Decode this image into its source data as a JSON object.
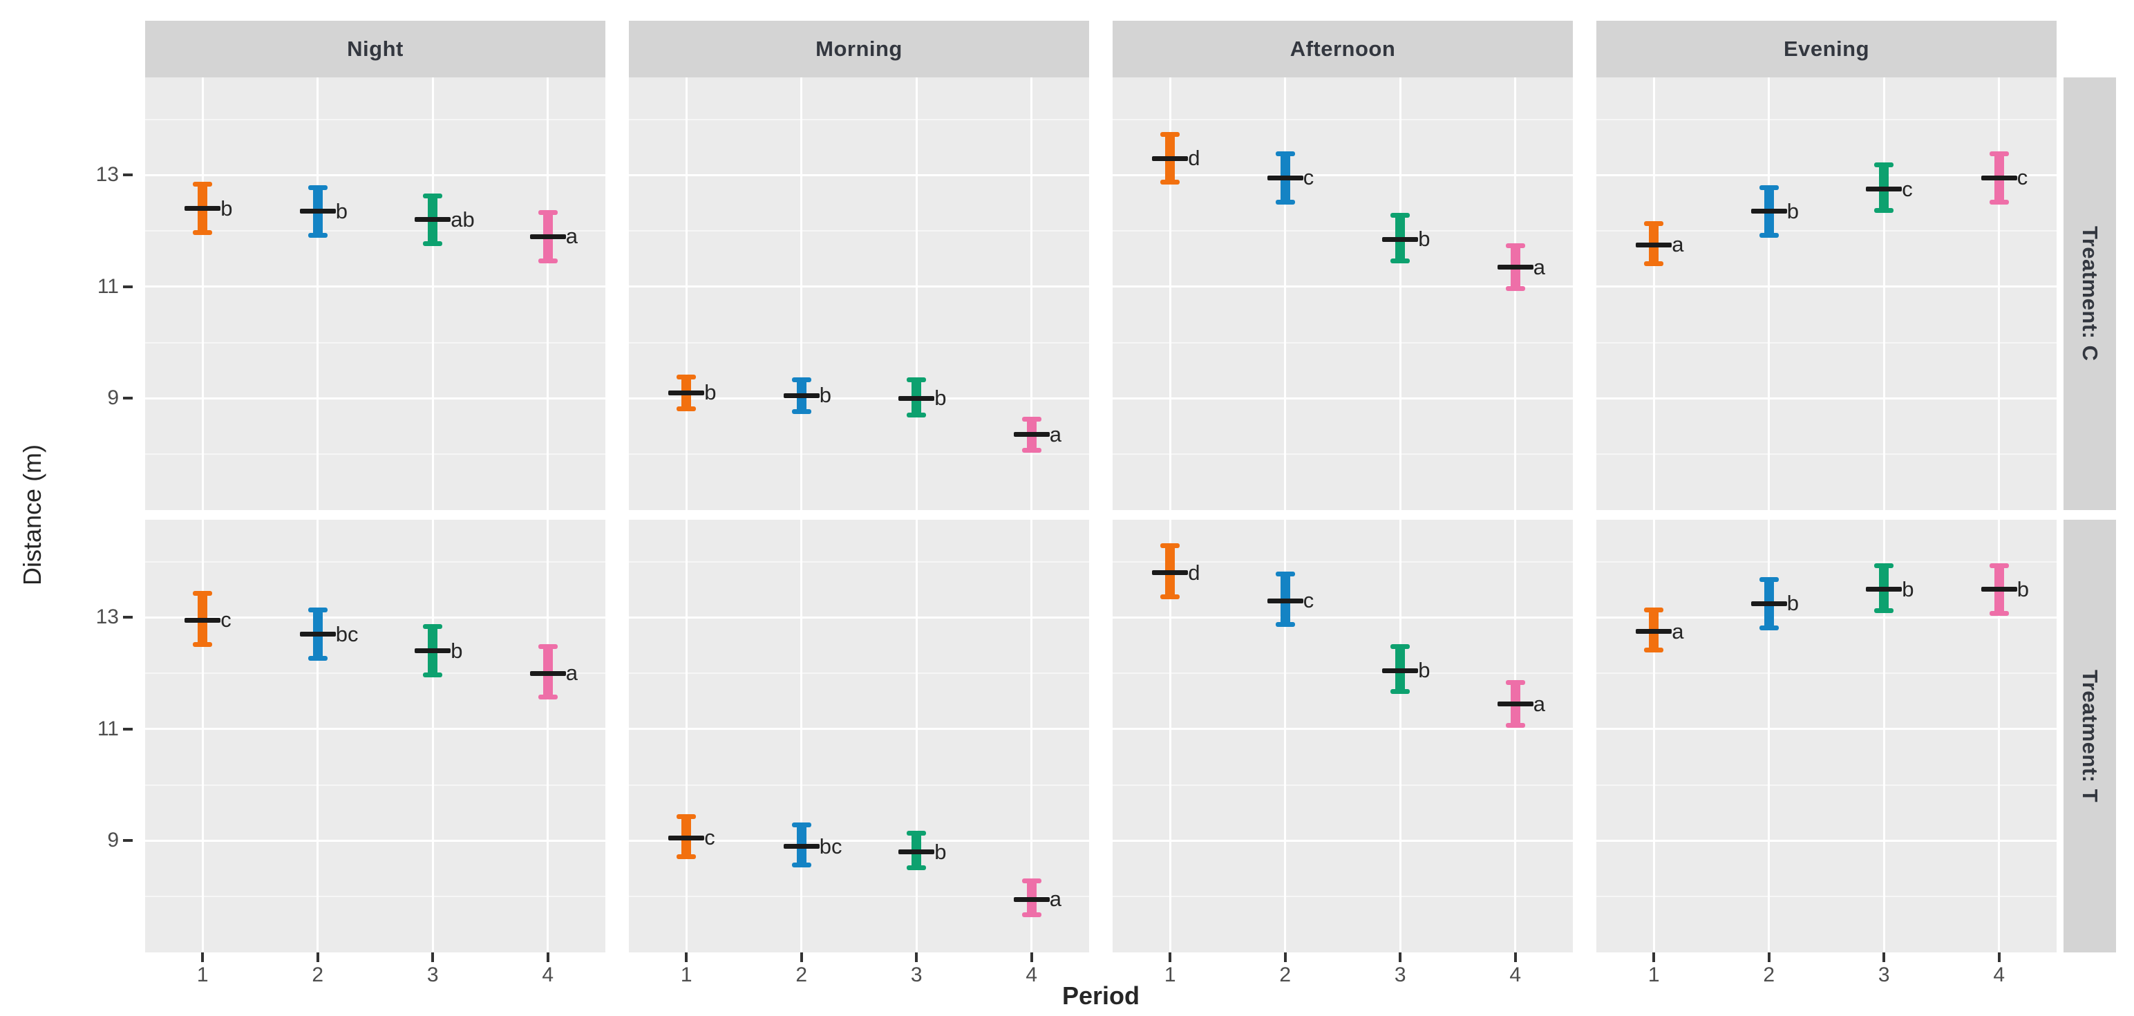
{
  "chart_data": {
    "type": "pointrange",
    "xlabel": "Period",
    "ylabel": "Distance (m)",
    "ylim": [
      7.0,
      14.75
    ],
    "y_major_ticks": [
      13,
      11,
      9
    ],
    "y_minor_gridlines": [
      14,
      12,
      10,
      8
    ],
    "x_categories": [
      "1",
      "2",
      "3",
      "4"
    ],
    "col_facets": [
      "Night",
      "Morning",
      "Afternoon",
      "Evening"
    ],
    "row_facets": [
      "Treatment: C",
      "Treatment: T"
    ],
    "legend_position": "none",
    "grid": "on",
    "panel_bg": "#ebebeb",
    "strip_bg": "#d4d4d4",
    "point_marker_color": "#1a1a1a",
    "period_colors": {
      "1": "#f2700f",
      "2": "#1483c4",
      "3": "#0da16f",
      "4": "#ee6fa8"
    },
    "panels": [
      {
        "row": "Treatment: C",
        "col": "Night",
        "points": [
          {
            "period": "1",
            "mean": 12.4,
            "lower": 11.95,
            "upper": 12.85,
            "sig": "b"
          },
          {
            "period": "2",
            "mean": 12.35,
            "lower": 11.9,
            "upper": 12.8,
            "sig": "b"
          },
          {
            "period": "3",
            "mean": 12.2,
            "lower": 11.75,
            "upper": 12.65,
            "sig": "ab"
          },
          {
            "period": "4",
            "mean": 11.9,
            "lower": 11.45,
            "upper": 12.35,
            "sig": "a"
          }
        ]
      },
      {
        "row": "Treatment: C",
        "col": "Morning",
        "points": [
          {
            "period": "1",
            "mean": 9.1,
            "lower": 8.8,
            "upper": 9.4,
            "sig": "b"
          },
          {
            "period": "2",
            "mean": 9.05,
            "lower": 8.75,
            "upper": 9.35,
            "sig": "b"
          },
          {
            "period": "3",
            "mean": 9.0,
            "lower": 8.68,
            "upper": 9.35,
            "sig": "b"
          },
          {
            "period": "4",
            "mean": 8.35,
            "lower": 8.05,
            "upper": 8.65,
            "sig": "a"
          }
        ]
      },
      {
        "row": "Treatment: C",
        "col": "Afternoon",
        "points": [
          {
            "period": "1",
            "mean": 13.3,
            "lower": 12.85,
            "upper": 13.75,
            "sig": "d"
          },
          {
            "period": "2",
            "mean": 12.95,
            "lower": 12.5,
            "upper": 13.4,
            "sig": "c"
          },
          {
            "period": "3",
            "mean": 11.85,
            "lower": 11.45,
            "upper": 12.3,
            "sig": "b"
          },
          {
            "period": "4",
            "mean": 11.35,
            "lower": 10.95,
            "upper": 11.75,
            "sig": "a"
          }
        ]
      },
      {
        "row": "Treatment: C",
        "col": "Evening",
        "points": [
          {
            "period": "1",
            "mean": 11.75,
            "lower": 11.4,
            "upper": 12.15,
            "sig": "a"
          },
          {
            "period": "2",
            "mean": 12.35,
            "lower": 11.9,
            "upper": 12.8,
            "sig": "b"
          },
          {
            "period": "3",
            "mean": 12.75,
            "lower": 12.35,
            "upper": 13.2,
            "sig": "c"
          },
          {
            "period": "4",
            "mean": 12.95,
            "lower": 12.5,
            "upper": 13.4,
            "sig": "c"
          }
        ]
      },
      {
        "row": "Treatment: T",
        "col": "Night",
        "points": [
          {
            "period": "1",
            "mean": 12.95,
            "lower": 12.5,
            "upper": 13.45,
            "sig": "c"
          },
          {
            "period": "2",
            "mean": 12.7,
            "lower": 12.25,
            "upper": 13.15,
            "sig": "bc"
          },
          {
            "period": "3",
            "mean": 12.4,
            "lower": 11.95,
            "upper": 12.85,
            "sig": "b"
          },
          {
            "period": "4",
            "mean": 12.0,
            "lower": 11.55,
            "upper": 12.5,
            "sig": "a"
          }
        ]
      },
      {
        "row": "Treatment: T",
        "col": "Morning",
        "points": [
          {
            "period": "1",
            "mean": 9.05,
            "lower": 8.7,
            "upper": 9.45,
            "sig": "c"
          },
          {
            "period": "2",
            "mean": 8.9,
            "lower": 8.55,
            "upper": 9.3,
            "sig": "bc"
          },
          {
            "period": "3",
            "mean": 8.8,
            "lower": 8.5,
            "upper": 9.15,
            "sig": "b"
          },
          {
            "period": "4",
            "mean": 7.95,
            "lower": 7.65,
            "upper": 8.3,
            "sig": "a"
          }
        ]
      },
      {
        "row": "Treatment: T",
        "col": "Afternoon",
        "points": [
          {
            "period": "1",
            "mean": 13.8,
            "lower": 13.35,
            "upper": 14.3,
            "sig": "d"
          },
          {
            "period": "2",
            "mean": 13.3,
            "lower": 12.85,
            "upper": 13.8,
            "sig": "c"
          },
          {
            "period": "3",
            "mean": 12.05,
            "lower": 11.65,
            "upper": 12.5,
            "sig": "b"
          },
          {
            "period": "4",
            "mean": 11.45,
            "lower": 11.05,
            "upper": 11.85,
            "sig": "a"
          }
        ]
      },
      {
        "row": "Treatment: T",
        "col": "Evening",
        "points": [
          {
            "period": "1",
            "mean": 12.75,
            "lower": 12.4,
            "upper": 13.15,
            "sig": "a"
          },
          {
            "period": "2",
            "mean": 13.25,
            "lower": 12.8,
            "upper": 13.7,
            "sig": "b"
          },
          {
            "period": "3",
            "mean": 13.5,
            "lower": 13.1,
            "upper": 13.95,
            "sig": "b"
          },
          {
            "period": "4",
            "mean": 13.5,
            "lower": 13.05,
            "upper": 13.95,
            "sig": "b"
          }
        ]
      }
    ]
  }
}
